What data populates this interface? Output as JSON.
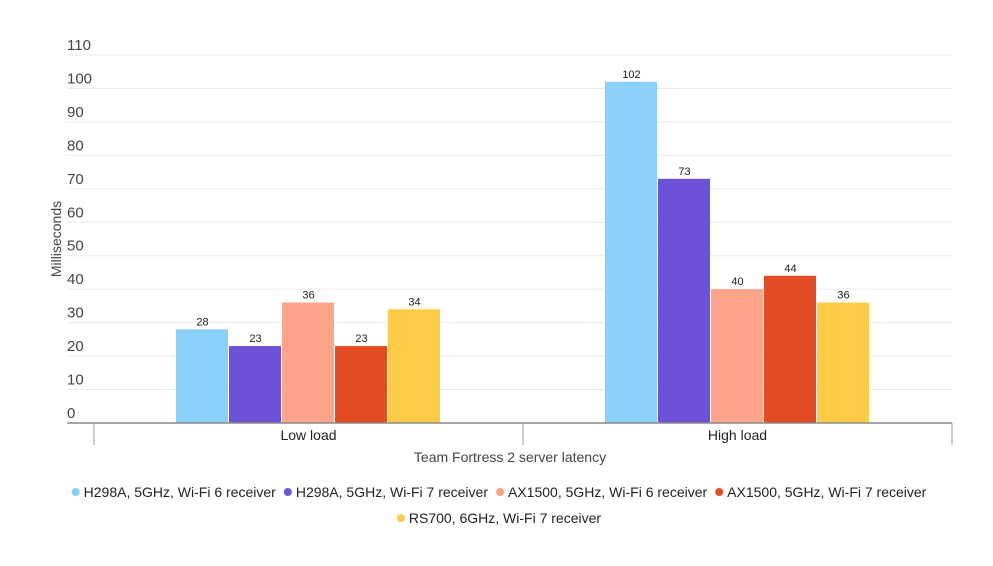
{
  "chart_data": {
    "type": "bar",
    "title": "",
    "xlabel": "Team Fortress 2 server latency",
    "ylabel": "Milliseconds",
    "ylim": [
      0,
      110
    ],
    "yticks": [
      0,
      10,
      20,
      30,
      40,
      50,
      60,
      70,
      80,
      90,
      100,
      110
    ],
    "grid": true,
    "legend_position": "bottom",
    "categories": [
      "Low load",
      "High load"
    ],
    "series": [
      {
        "name": "H298A, 5GHz, Wi-Fi 6 receiver",
        "color": "#89d1f8",
        "values": [
          28,
          102
        ]
      },
      {
        "name": "H298A, 5GHz, Wi-Fi 7 receiver",
        "color": "#6b52d8",
        "values": [
          23,
          73
        ]
      },
      {
        "name": "AX1500, 5GHz, Wi-Fi 6 receiver",
        "color": "#fda48b",
        "values": [
          36,
          40
        ]
      },
      {
        "name": "AX1500, 5GHz, Wi-Fi 7 receiver",
        "color": "#e34c24",
        "values": [
          23,
          44
        ]
      },
      {
        "name": "RS700, 6GHz, Wi-Fi 7 receiver",
        "color": "#fdcb46",
        "values": [
          34,
          36
        ]
      }
    ]
  }
}
